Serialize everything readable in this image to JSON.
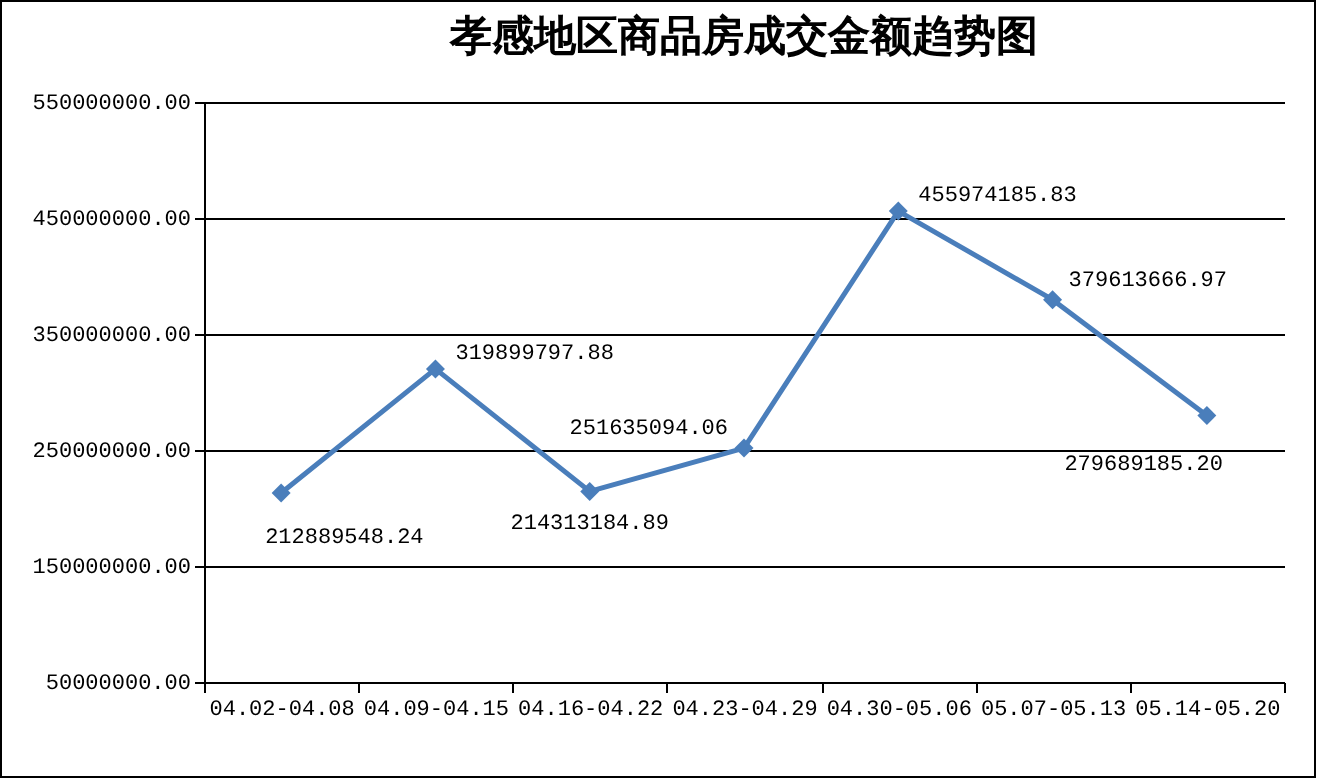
{
  "chart_data": {
    "type": "line",
    "title": "孝感地区商品房成交金额趋势图",
    "categories": [
      "04.02-04.08",
      "04.09-04.15",
      "04.16-04.22",
      "04.23-04.29",
      "04.30-05.06",
      "05.07-05.13",
      "05.14-05.20"
    ],
    "series": [
      {
        "color": "#4a7ebb",
        "values": [
          212889548.24,
          319899797.88,
          214313184.89,
          251635094.06,
          455974185.83,
          379613666.97,
          279689185.2
        ],
        "value_labels": [
          "212889548.24",
          "319899797.88",
          "214313184.89",
          "251635094.06",
          "455974185.83",
          "379613666.97",
          "279689185.20"
        ]
      }
    ],
    "ylim": [
      50000000,
      550000000
    ],
    "yticks": [
      {
        "value": 50000000,
        "label": "50000000.00"
      },
      {
        "value": 150000000,
        "label": "150000000.00"
      },
      {
        "value": 250000000,
        "label": "250000000.00"
      },
      {
        "value": 350000000,
        "label": "350000000.00"
      },
      {
        "value": 450000000,
        "label": "450000000.00"
      },
      {
        "value": 550000000,
        "label": "550000000.00"
      }
    ],
    "grid": "y",
    "marker": "diamond",
    "line_style": "solid"
  }
}
